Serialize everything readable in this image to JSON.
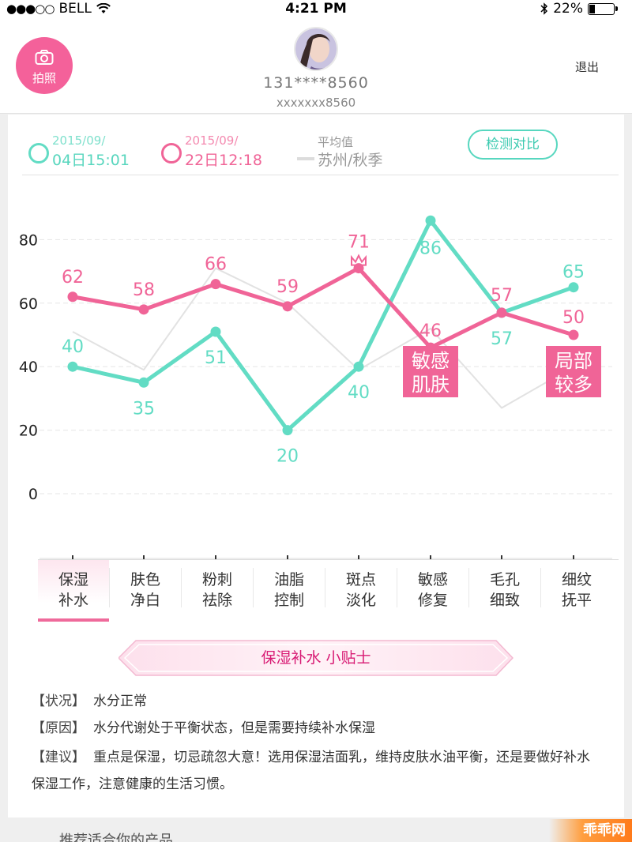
{
  "status_bar": {
    "signal": "●●●○○",
    "carrier": "BELL",
    "time": "4:21 PM",
    "battery_text": "22%",
    "battery_level": 0.22
  },
  "header": {
    "camera_label": "拍照",
    "phone": "131****8560",
    "account": "xxxxxxx8560",
    "logout": "退出"
  },
  "legend": {
    "first": {
      "date_line1": "2015/09/",
      "date_line2": "04日15:01",
      "color": "#62dcc4"
    },
    "second": {
      "date_line1": "2015/09/",
      "date_line2": "22日12:18",
      "color": "#f06497"
    },
    "average": {
      "label": "平均值",
      "place": "苏州/秋季",
      "color": "#dcdcdc"
    },
    "compare_button": "检测对比"
  },
  "chart_data": {
    "type": "line",
    "categories": [
      "保湿补水",
      "肤色净白",
      "粉刺祛除",
      "油脂控制",
      "斑点淡化",
      "敏感修复",
      "毛孔细致",
      "细纹抚平"
    ],
    "ylim": [
      0,
      90
    ],
    "yticks": [
      "0",
      "20",
      "40",
      "60",
      "80"
    ],
    "series": [
      {
        "key": "first",
        "color": "#62dcc4",
        "values": [
          40,
          35,
          51,
          20,
          40,
          86,
          57,
          65
        ]
      },
      {
        "key": "second",
        "color": "#f06497",
        "values": [
          62,
          58,
          66,
          59,
          71,
          46,
          57,
          50
        ]
      },
      {
        "key": "average",
        "color": "#e2e2e2",
        "values": [
          51,
          39,
          71,
          60,
          39,
          52,
          27,
          40
        ]
      }
    ],
    "annotations": [
      {
        "index": 5,
        "text1": "敏感",
        "text2": "肌肤"
      },
      {
        "index": 7,
        "text1": "局部",
        "text2": "较多"
      }
    ],
    "crown_index": 4
  },
  "tabs": [
    {
      "line1": "保湿",
      "line2": "补水",
      "active": true
    },
    {
      "line1": "肤色",
      "line2": "净白"
    },
    {
      "line1": "粉刺",
      "line2": "祛除"
    },
    {
      "line1": "油脂",
      "line2": "控制"
    },
    {
      "line1": "斑点",
      "line2": "淡化"
    },
    {
      "line1": "敏感",
      "line2": "修复"
    },
    {
      "line1": "毛孔",
      "line2": "细致"
    },
    {
      "line1": "细纹",
      "line2": "抚平"
    }
  ],
  "tip": {
    "title": "保湿补水 小贴士",
    "status_key": "【状况】",
    "status": "水分正常",
    "reason_key": "【原因】",
    "reason": "水分代谢处于平衡状态，但是需要持续补水保湿",
    "advice_key": "【建议】",
    "advice": "重点是保湿，切忌疏忽大意！选用保湿洁面乳，维持皮肤水油平衡，还是要做好补水保湿工作，注意健康的生活习惯。"
  },
  "footer": {
    "section_title": "推荐适合你的产品",
    "watermark": "乖乖网"
  }
}
